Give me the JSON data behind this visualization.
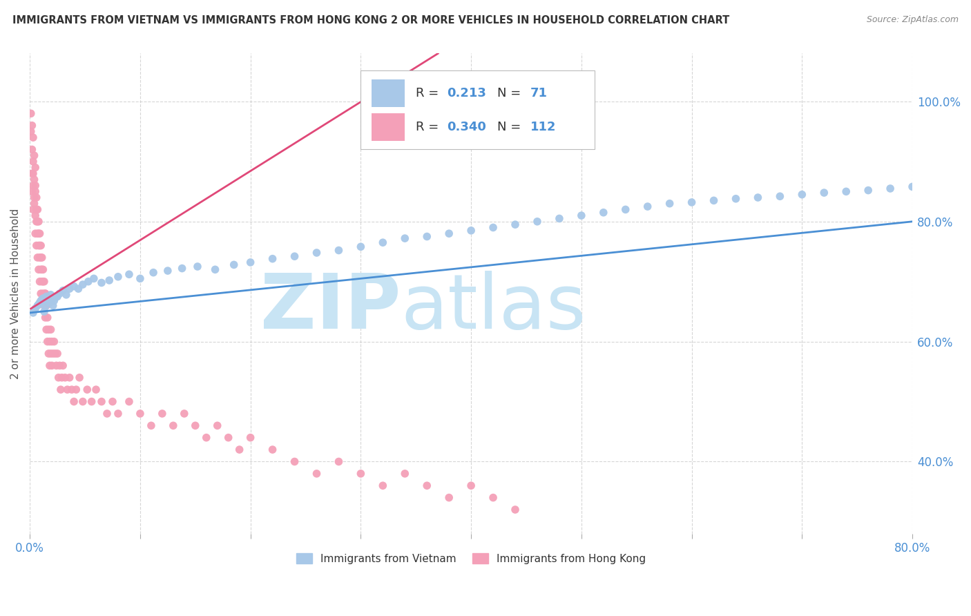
{
  "title": "IMMIGRANTS FROM VIETNAM VS IMMIGRANTS FROM HONG KONG 2 OR MORE VEHICLES IN HOUSEHOLD CORRELATION CHART",
  "source": "Source: ZipAtlas.com",
  "ylabel": "2 or more Vehicles in Household",
  "yticks": [
    "40.0%",
    "60.0%",
    "80.0%",
    "100.0%"
  ],
  "ytick_vals": [
    0.4,
    0.6,
    0.8,
    1.0
  ],
  "vietnam_color": "#a8c8e8",
  "hongkong_color": "#f4a0b8",
  "vietnam_line_color": "#4a8fd4",
  "hongkong_line_color": "#e04878",
  "watermark_zip": "ZIP",
  "watermark_atlas": "atlas",
  "watermark_color": "#c8e4f4",
  "background_color": "#ffffff",
  "xlim": [
    0.0,
    0.8
  ],
  "ylim": [
    0.28,
    1.08
  ],
  "vietnam_scatter_x": [
    0.003,
    0.005,
    0.007,
    0.008,
    0.009,
    0.01,
    0.011,
    0.012,
    0.013,
    0.014,
    0.015,
    0.016,
    0.017,
    0.018,
    0.019,
    0.02,
    0.021,
    0.022,
    0.023,
    0.025,
    0.027,
    0.03,
    0.033,
    0.036,
    0.04,
    0.044,
    0.048,
    0.053,
    0.058,
    0.065,
    0.072,
    0.08,
    0.09,
    0.1,
    0.112,
    0.125,
    0.138,
    0.152,
    0.168,
    0.185,
    0.2,
    0.22,
    0.24,
    0.26,
    0.28,
    0.3,
    0.32,
    0.34,
    0.36,
    0.38,
    0.4,
    0.42,
    0.44,
    0.46,
    0.48,
    0.5,
    0.52,
    0.54,
    0.56,
    0.58,
    0.6,
    0.62,
    0.64,
    0.66,
    0.68,
    0.7,
    0.72,
    0.74,
    0.76,
    0.78,
    0.8
  ],
  "vietnam_scatter_y": [
    0.648,
    0.655,
    0.66,
    0.662,
    0.665,
    0.668,
    0.67,
    0.672,
    0.65,
    0.658,
    0.675,
    0.668,
    0.672,
    0.665,
    0.678,
    0.67,
    0.66,
    0.668,
    0.673,
    0.675,
    0.68,
    0.685,
    0.678,
    0.688,
    0.692,
    0.688,
    0.695,
    0.7,
    0.705,
    0.698,
    0.702,
    0.708,
    0.712,
    0.705,
    0.715,
    0.718,
    0.722,
    0.725,
    0.72,
    0.728,
    0.732,
    0.738,
    0.742,
    0.748,
    0.752,
    0.758,
    0.765,
    0.772,
    0.775,
    0.78,
    0.785,
    0.79,
    0.795,
    0.8,
    0.805,
    0.81,
    0.815,
    0.82,
    0.825,
    0.83,
    0.832,
    0.835,
    0.838,
    0.84,
    0.842,
    0.845,
    0.848,
    0.85,
    0.852,
    0.855,
    0.858
  ],
  "hongkong_scatter_x": [
    0.001,
    0.001,
    0.002,
    0.002,
    0.002,
    0.003,
    0.003,
    0.003,
    0.003,
    0.004,
    0.004,
    0.004,
    0.005,
    0.005,
    0.005,
    0.005,
    0.006,
    0.006,
    0.006,
    0.007,
    0.007,
    0.007,
    0.008,
    0.008,
    0.008,
    0.009,
    0.009,
    0.009,
    0.01,
    0.01,
    0.01,
    0.011,
    0.011,
    0.012,
    0.012,
    0.013,
    0.013,
    0.014,
    0.014,
    0.015,
    0.015,
    0.016,
    0.016,
    0.017,
    0.017,
    0.018,
    0.018,
    0.019,
    0.019,
    0.02,
    0.02,
    0.021,
    0.022,
    0.023,
    0.024,
    0.025,
    0.026,
    0.027,
    0.028,
    0.029,
    0.03,
    0.032,
    0.034,
    0.036,
    0.038,
    0.04,
    0.042,
    0.045,
    0.048,
    0.052,
    0.056,
    0.06,
    0.065,
    0.07,
    0.075,
    0.08,
    0.09,
    0.1,
    0.11,
    0.12,
    0.13,
    0.14,
    0.15,
    0.16,
    0.17,
    0.18,
    0.19,
    0.2,
    0.22,
    0.24,
    0.26,
    0.28,
    0.3,
    0.32,
    0.34,
    0.36,
    0.38,
    0.4,
    0.42,
    0.44,
    0.002,
    0.003,
    0.004,
    0.005,
    0.006,
    0.007,
    0.008,
    0.009,
    0.01,
    0.011,
    0.012,
    0.014
  ],
  "hongkong_scatter_y": [
    0.98,
    0.95,
    0.96,
    0.92,
    0.88,
    0.94,
    0.9,
    0.86,
    0.82,
    0.91,
    0.87,
    0.83,
    0.89,
    0.85,
    0.81,
    0.78,
    0.84,
    0.8,
    0.76,
    0.82,
    0.78,
    0.74,
    0.8,
    0.76,
    0.72,
    0.78,
    0.74,
    0.7,
    0.76,
    0.72,
    0.68,
    0.74,
    0.7,
    0.72,
    0.68,
    0.7,
    0.66,
    0.68,
    0.64,
    0.66,
    0.62,
    0.64,
    0.6,
    0.62,
    0.58,
    0.6,
    0.56,
    0.62,
    0.58,
    0.6,
    0.56,
    0.58,
    0.6,
    0.58,
    0.56,
    0.58,
    0.54,
    0.56,
    0.52,
    0.54,
    0.56,
    0.54,
    0.52,
    0.54,
    0.52,
    0.5,
    0.52,
    0.54,
    0.5,
    0.52,
    0.5,
    0.52,
    0.5,
    0.48,
    0.5,
    0.48,
    0.5,
    0.48,
    0.46,
    0.48,
    0.46,
    0.48,
    0.46,
    0.44,
    0.46,
    0.44,
    0.42,
    0.44,
    0.42,
    0.4,
    0.38,
    0.4,
    0.38,
    0.36,
    0.38,
    0.36,
    0.34,
    0.36,
    0.34,
    0.32,
    0.85,
    0.88,
    0.84,
    0.86,
    0.82,
    0.8,
    0.78,
    0.76,
    0.74,
    0.72,
    0.7,
    0.68
  ],
  "hk_line_x0": 0.001,
  "hk_line_x1": 0.37,
  "hk_line_y0": 0.655,
  "hk_line_y1": 1.08,
  "viet_line_x0": 0.0,
  "viet_line_x1": 0.8,
  "viet_line_y0": 0.648,
  "viet_line_y1": 0.8
}
